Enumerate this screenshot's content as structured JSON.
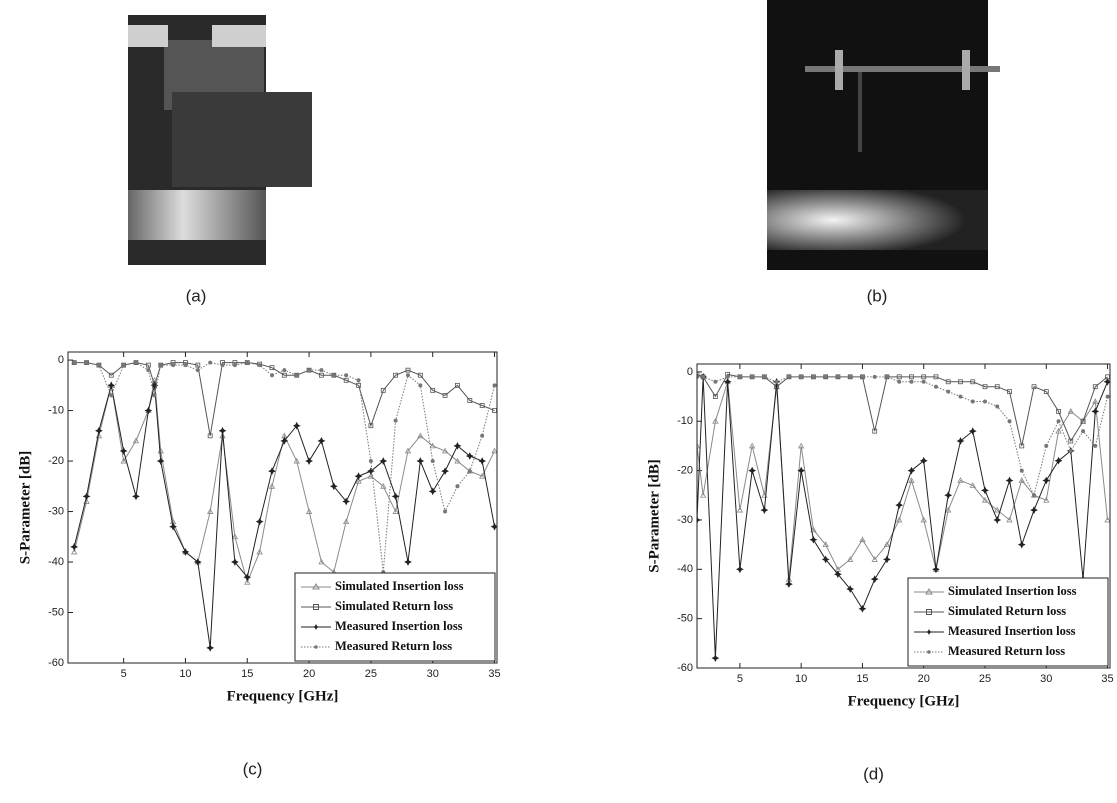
{
  "figures": [
    {
      "caption": "(a)"
    },
    {
      "caption": "(b)"
    }
  ],
  "chart_data": [
    {
      "type": "line",
      "caption": "(c)",
      "xlabel": "Frequency [GHz]",
      "ylabel": "S-Parameter [dB]",
      "xlim": [
        0.5,
        35.2
      ],
      "ylim": [
        -60,
        1.6
      ],
      "xticks": [
        5,
        10,
        15,
        20,
        25,
        30,
        35
      ],
      "yticks": [
        0,
        -10,
        -20,
        -30,
        -40,
        -50,
        -60
      ],
      "legend": "lower right",
      "x": [
        1,
        2,
        3,
        4,
        5,
        6,
        7,
        7.5,
        8,
        9,
        10,
        11,
        12,
        13,
        14,
        15,
        16,
        17,
        18,
        19,
        20,
        21,
        22,
        23,
        24,
        25,
        26,
        27,
        28,
        29,
        30,
        31,
        32,
        33,
        34,
        35
      ],
      "series": [
        {
          "name": "Simulated Insertion loss",
          "color": "#8a8a8a",
          "marker": "triangle",
          "line_style": "solid",
          "values": [
            -38,
            -28,
            -15,
            -5,
            -20,
            -16,
            -10,
            -4,
            -18,
            -32,
            -38,
            -40,
            -30,
            -15,
            -35,
            -44,
            -38,
            -25,
            -15,
            -20,
            -30,
            -40,
            -42,
            -32,
            -24,
            -23,
            -25,
            -30,
            -18,
            -15,
            -17,
            -18,
            -20,
            -22,
            -23,
            -18
          ]
        },
        {
          "name": "Simulated Return loss",
          "color": "#555555",
          "marker": "square",
          "line_style": "solid",
          "values": [
            -0.5,
            -0.5,
            -1,
            -3,
            -1,
            -0.5,
            -1,
            -5,
            -1,
            -0.5,
            -0.5,
            -1,
            -15,
            -0.5,
            -0.5,
            -0.5,
            -0.8,
            -1.5,
            -3,
            -3,
            -2,
            -3,
            -3,
            -4,
            -5,
            -13,
            -6,
            -3,
            -2,
            -3,
            -6,
            -7,
            -5,
            -8,
            -9,
            -10
          ]
        },
        {
          "name": "Measured Insertion loss",
          "color": "#222222",
          "marker": "star",
          "line_style": "solid",
          "values": [
            -37,
            -27,
            -14,
            -5,
            -18,
            -27,
            -10,
            -5,
            -20,
            -33,
            -38,
            -40,
            -57,
            -14,
            -40,
            -43,
            -32,
            -22,
            -16,
            -13,
            -20,
            -16,
            -25,
            -28,
            -23,
            -22,
            -20,
            -27,
            -40,
            -20,
            -26,
            -22,
            -17,
            -19,
            -20,
            -33
          ]
        },
        {
          "name": "Measured Return loss",
          "color": "#777777",
          "marker": "dot",
          "line_style": "dotted",
          "values": [
            -0.5,
            -0.5,
            -1,
            -7,
            -1,
            -0.5,
            -2,
            -7,
            -1,
            -1,
            -1,
            -2,
            -0.5,
            -1,
            -1,
            -0.5,
            -1,
            -3,
            -2,
            -3,
            -2,
            -2,
            -3,
            -3,
            -4,
            -20,
            -42,
            -12,
            -3,
            -5,
            -20,
            -30,
            -25,
            -22,
            -15,
            -5
          ]
        }
      ]
    },
    {
      "type": "line",
      "caption": "(d)",
      "xlabel": "Frequency [GHz]",
      "ylabel": "S-Parameter [dB]",
      "xlim": [
        1.5,
        35.2
      ],
      "ylim": [
        -60,
        1.6
      ],
      "xticks": [
        5,
        10,
        15,
        20,
        25,
        30,
        35
      ],
      "yticks": [
        0,
        -10,
        -20,
        -30,
        -40,
        -50,
        -60
      ],
      "legend": "lower right",
      "x": [
        1.5,
        2,
        3,
        4,
        5,
        6,
        7,
        8,
        9,
        10,
        11,
        12,
        13,
        14,
        15,
        16,
        17,
        18,
        19,
        20,
        21,
        22,
        23,
        24,
        25,
        26,
        27,
        28,
        29,
        30,
        31,
        32,
        33,
        34,
        35
      ],
      "series": [
        {
          "name": "Simulated Insertion loss",
          "color": "#8a8a8a",
          "marker": "triangle",
          "line_style": "solid",
          "values": [
            -15,
            -25,
            -10,
            -2,
            -28,
            -15,
            -25,
            -3,
            -42,
            -15,
            -32,
            -35,
            -40,
            -38,
            -34,
            -38,
            -35,
            -30,
            -22,
            -30,
            -40,
            -28,
            -22,
            -23,
            -26,
            -28,
            -30,
            -22,
            -25,
            -26,
            -12,
            -8,
            -10,
            -6,
            -30
          ]
        },
        {
          "name": "Simulated Return loss",
          "color": "#555555",
          "marker": "square",
          "line_style": "solid",
          "values": [
            -0.5,
            -1,
            -5,
            -0.5,
            -1,
            -1,
            -1,
            -3,
            -1,
            -1,
            -1,
            -1,
            -1,
            -1,
            -1,
            -12,
            -1,
            -1,
            -1,
            -1,
            -1,
            -2,
            -2,
            -2,
            -3,
            -3,
            -4,
            -15,
            -3,
            -4,
            -8,
            -14,
            -10,
            -3,
            -1
          ]
        },
        {
          "name": "Measured Insertion loss",
          "color": "#222222",
          "marker": "star",
          "line_style": "solid",
          "values": [
            -30,
            -1,
            -58,
            -2,
            -40,
            -20,
            -28,
            -2,
            -43,
            -20,
            -34,
            -38,
            -41,
            -44,
            -48,
            -42,
            -38,
            -27,
            -20,
            -18,
            -40,
            -25,
            -14,
            -12,
            -24,
            -30,
            -22,
            -35,
            -28,
            -22,
            -18,
            -16,
            -42,
            -8,
            -2
          ]
        },
        {
          "name": "Measured Return loss",
          "color": "#777777",
          "marker": "dot",
          "line_style": "dotted",
          "values": [
            -1,
            -1,
            -2,
            -1,
            -1,
            -1,
            -1,
            -2,
            -1,
            -1,
            -1,
            -1,
            -1,
            -1,
            -1,
            -1,
            -1,
            -2,
            -2,
            -2,
            -3,
            -4,
            -5,
            -6,
            -6,
            -7,
            -10,
            -20,
            -25,
            -15,
            -10,
            -16,
            -12,
            -15,
            -5
          ]
        }
      ]
    }
  ]
}
